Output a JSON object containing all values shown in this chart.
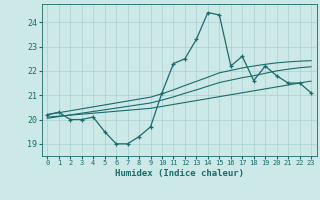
{
  "xlabel": "Humidex (Indice chaleur)",
  "bg_color": "#cce9e8",
  "line_color": "#1a6b6b",
  "grid_color": "#aacfcf",
  "xlim": [
    -0.5,
    23.5
  ],
  "ylim": [
    18.5,
    24.75
  ],
  "xticks": [
    0,
    1,
    2,
    3,
    4,
    5,
    6,
    7,
    8,
    9,
    10,
    11,
    12,
    13,
    14,
    15,
    16,
    17,
    18,
    19,
    20,
    21,
    22,
    23
  ],
  "yticks": [
    19,
    20,
    21,
    22,
    23,
    24
  ],
  "main_series": [
    20.2,
    20.3,
    20.0,
    20.0,
    20.1,
    19.5,
    19.0,
    19.0,
    19.3,
    19.7,
    21.1,
    22.3,
    22.5,
    23.3,
    24.4,
    24.3,
    22.2,
    22.6,
    21.6,
    22.2,
    21.8,
    21.5,
    21.5,
    21.1
  ],
  "trend1": [
    20.1,
    20.14,
    20.18,
    20.22,
    20.26,
    20.3,
    20.34,
    20.38,
    20.42,
    20.46,
    20.54,
    20.62,
    20.7,
    20.78,
    20.86,
    20.94,
    21.02,
    21.1,
    21.18,
    21.26,
    21.34,
    21.42,
    21.5,
    21.58
  ],
  "trend2": [
    20.05,
    20.12,
    20.19,
    20.26,
    20.33,
    20.4,
    20.47,
    20.54,
    20.61,
    20.68,
    20.8,
    20.93,
    21.08,
    21.22,
    21.37,
    21.52,
    21.62,
    21.72,
    21.8,
    21.9,
    22.0,
    22.07,
    22.13,
    22.17
  ],
  "trend3": [
    20.2,
    20.28,
    20.36,
    20.44,
    20.52,
    20.6,
    20.68,
    20.76,
    20.84,
    20.92,
    21.06,
    21.22,
    21.4,
    21.57,
    21.74,
    21.92,
    22.02,
    22.12,
    22.2,
    22.27,
    22.33,
    22.37,
    22.4,
    22.42
  ]
}
